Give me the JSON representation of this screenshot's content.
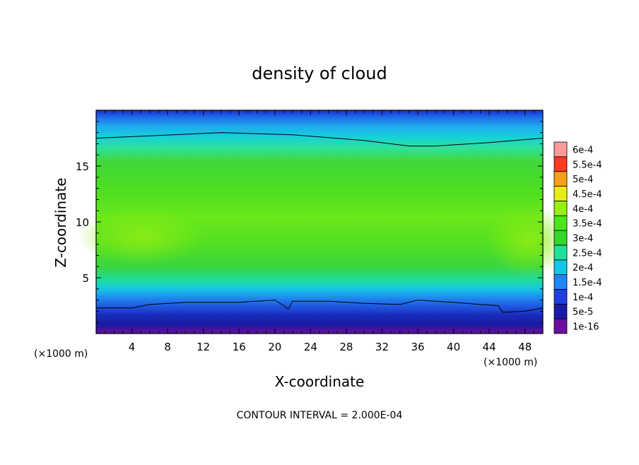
{
  "chart_data": {
    "type": "heatmap",
    "title": "density of cloud",
    "xlabel": "X-coordinate",
    "ylabel": "Z-coordinate",
    "x_unit": "(×1000 m)",
    "y_unit": "(×1000 m)",
    "xlim": [
      0,
      50
    ],
    "ylim": [
      0,
      20
    ],
    "x_ticks": [
      4,
      8,
      12,
      16,
      20,
      24,
      28,
      32,
      36,
      40,
      44,
      48
    ],
    "y_ticks": [
      5,
      10,
      15
    ],
    "footer": "CONTOUR INTERVAL = 2.000E-04",
    "colorbar": {
      "levels": [
        "1e-16",
        "5e-5",
        "1e-4",
        "1.5e-4",
        "2e-4",
        "2.5e-4",
        "3e-4",
        "3.5e-4",
        "4e-4",
        "4.5e-4",
        "5e-4",
        "5.5e-4",
        "6e-4"
      ],
      "colors": [
        "#6a0f9e",
        "#1a1aa6",
        "#1f3fe0",
        "#1f86f2",
        "#12c8e6",
        "#1de39a",
        "#37d62a",
        "#4de61c",
        "#96f012",
        "#e8ee15",
        "#f5a01a",
        "#ff3a24",
        "#ff9a9a"
      ]
    },
    "contours": [
      {
        "level": "2e-4",
        "points": [
          [
            0,
            17.5
          ],
          [
            6,
            17.7
          ],
          [
            14,
            18.0
          ],
          [
            22,
            17.8
          ],
          [
            30,
            17.3
          ],
          [
            35,
            16.8
          ],
          [
            38,
            16.8
          ],
          [
            44,
            17.1
          ],
          [
            50,
            17.5
          ]
        ]
      },
      {
        "level": "2e-4",
        "points": [
          [
            0,
            2.3
          ],
          [
            4,
            2.3
          ],
          [
            6,
            2.6
          ],
          [
            10,
            2.8
          ],
          [
            16,
            2.8
          ],
          [
            20,
            3.0
          ],
          [
            21,
            2.5
          ],
          [
            21.5,
            2.2
          ],
          [
            22,
            2.9
          ],
          [
            26,
            2.9
          ],
          [
            30,
            2.7
          ],
          [
            34,
            2.6
          ],
          [
            36,
            3.0
          ],
          [
            40,
            2.8
          ],
          [
            43,
            2.6
          ],
          [
            45,
            2.5
          ],
          [
            45.5,
            1.9
          ],
          [
            48,
            2.0
          ],
          [
            50,
            2.3
          ]
        ]
      }
    ]
  }
}
